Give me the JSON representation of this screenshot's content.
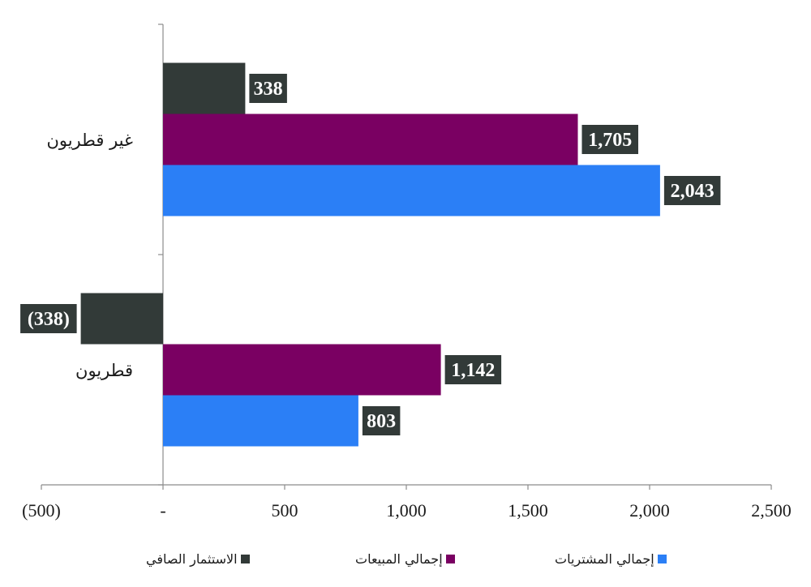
{
  "chart_data": {
    "type": "bar",
    "orientation": "horizontal",
    "categories": [
      "غير قطريون",
      "قطريون"
    ],
    "series": [
      {
        "name": "الاستثمار الصافي",
        "color": "#323a38",
        "values": [
          338,
          -338
        ],
        "labels": [
          "338",
          "(338)"
        ]
      },
      {
        "name": "إجمالي المبيعات",
        "color": "#7a0062",
        "values": [
          1705,
          1142
        ],
        "labels": [
          "1,705",
          "1,142"
        ]
      },
      {
        "name": "إجمالي المشتريات",
        "color": "#2b7ff6",
        "values": [
          2043,
          803
        ],
        "labels": [
          "2,043",
          "803"
        ]
      }
    ],
    "xlim": [
      -500,
      2500
    ],
    "xticks": [
      -500,
      0,
      500,
      1000,
      1500,
      2000,
      2500
    ],
    "xtick_labels": [
      "(500)",
      "-",
      "500",
      "1,000",
      "1,500",
      "2,000",
      "2,500"
    ],
    "label_box_color": "#323a38",
    "grid": false,
    "legend_position": "bottom",
    "legend_order": [
      "الاستثمار الصافي",
      "إجمالي المبيعات",
      "إجمالي المشتريات"
    ]
  }
}
